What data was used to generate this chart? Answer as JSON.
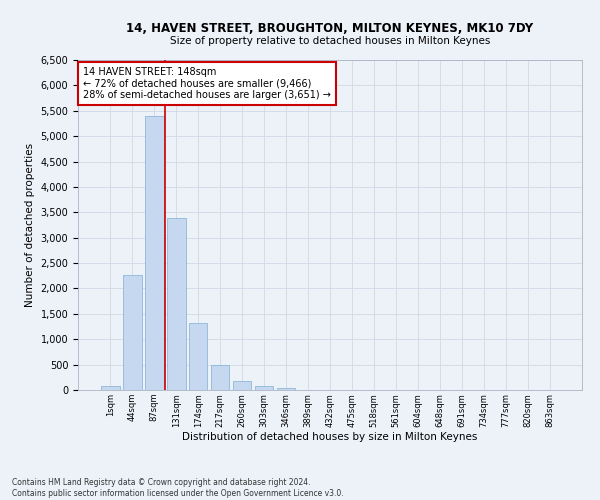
{
  "title_line1": "14, HAVEN STREET, BROUGHTON, MILTON KEYNES, MK10 7DY",
  "title_line2": "Size of property relative to detached houses in Milton Keynes",
  "xlabel": "Distribution of detached houses by size in Milton Keynes",
  "ylabel": "Number of detached properties",
  "footnote": "Contains HM Land Registry data © Crown copyright and database right 2024.\nContains public sector information licensed under the Open Government Licence v3.0.",
  "bar_labels": [
    "1sqm",
    "44sqm",
    "87sqm",
    "131sqm",
    "174sqm",
    "217sqm",
    "260sqm",
    "303sqm",
    "346sqm",
    "389sqm",
    "432sqm",
    "475sqm",
    "518sqm",
    "561sqm",
    "604sqm",
    "648sqm",
    "691sqm",
    "734sqm",
    "777sqm",
    "820sqm",
    "863sqm"
  ],
  "bar_values": [
    70,
    2270,
    5400,
    3380,
    1310,
    490,
    185,
    80,
    40,
    0,
    0,
    0,
    0,
    0,
    0,
    0,
    0,
    0,
    0,
    0,
    0
  ],
  "bar_color": "#c5d8f0",
  "bar_edgecolor": "#7fafd4",
  "vline_color": "#cc0000",
  "annotation_text": "14 HAVEN STREET: 148sqm\n← 72% of detached houses are smaller (9,466)\n28% of semi-detached houses are larger (3,651) →",
  "annotation_box_color": "#ffffff",
  "annotation_box_edgecolor": "#cc0000",
  "ylim": [
    0,
    6500
  ],
  "yticks": [
    0,
    500,
    1000,
    1500,
    2000,
    2500,
    3000,
    3500,
    4000,
    4500,
    5000,
    5500,
    6000,
    6500
  ],
  "grid_color": "#d0d8e8",
  "plot_background": "#edf2f9"
}
